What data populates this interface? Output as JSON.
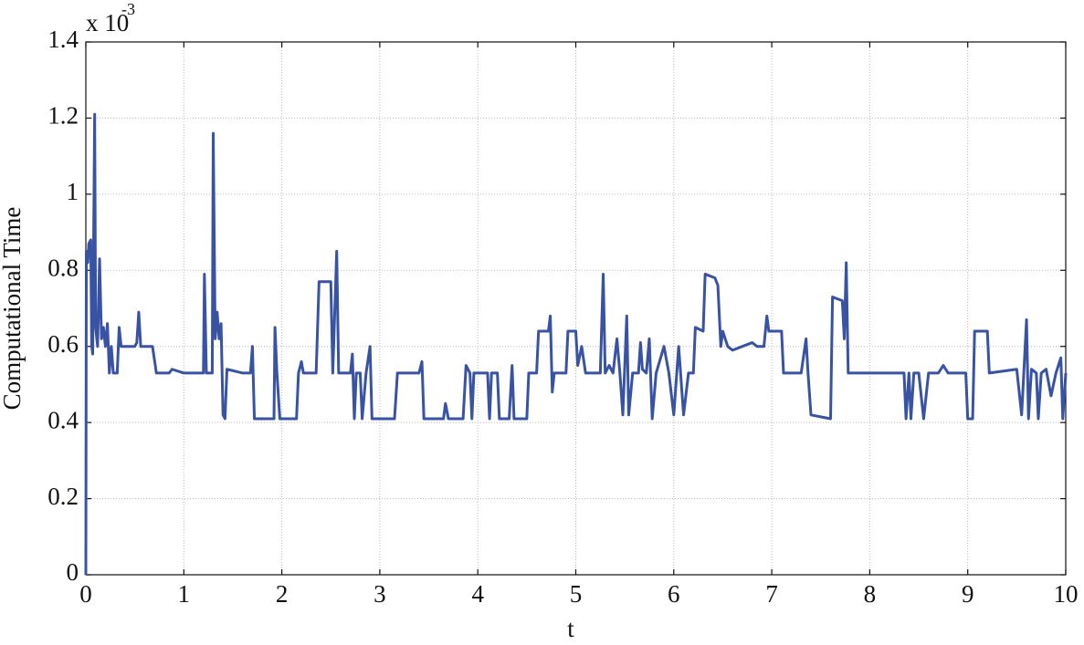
{
  "chart_data": {
    "type": "line",
    "xlabel": "t",
    "ylabel": "Computational Time",
    "y_multiplier": {
      "base": "x 10",
      "exponent": "-3"
    },
    "color": "#3853a4",
    "grid": true,
    "xlim": [
      0,
      10
    ],
    "xticks": [
      0,
      1,
      2,
      3,
      4,
      5,
      6,
      7,
      8,
      9,
      10
    ],
    "ylim": [
      0,
      1.4
    ],
    "yticks": [
      0,
      0.2,
      0.4,
      0.6,
      0.8,
      1,
      1.2,
      1.4
    ],
    "x": [
      0,
      0.005,
      0.02,
      0.03,
      0.05,
      0.06,
      0.07,
      0.09,
      0.1,
      0.12,
      0.14,
      0.16,
      0.18,
      0.2,
      0.22,
      0.24,
      0.26,
      0.28,
      0.32,
      0.34,
      0.36,
      0.5,
      0.52,
      0.54,
      0.56,
      0.68,
      0.72,
      0.85,
      0.88,
      1.0,
      1.2,
      1.21,
      1.23,
      1.29,
      1.3,
      1.32,
      1.34,
      1.36,
      1.38,
      1.4,
      1.42,
      1.44,
      1.6,
      1.68,
      1.7,
      1.72,
      1.92,
      1.93,
      1.95,
      1.98,
      2.15,
      2.17,
      2.2,
      2.22,
      2.35,
      2.38,
      2.5,
      2.52,
      2.56,
      2.58,
      2.7,
      2.72,
      2.74,
      2.76,
      2.8,
      2.82,
      2.86,
      2.9,
      2.92,
      3.15,
      3.18,
      3.4,
      3.43,
      3.45,
      3.65,
      3.67,
      3.7,
      3.85,
      3.88,
      3.92,
      3.94,
      3.96,
      4.1,
      4.12,
      4.14,
      4.2,
      4.22,
      4.32,
      4.35,
      4.37,
      4.5,
      4.52,
      4.6,
      4.62,
      4.72,
      4.74,
      4.76,
      4.78,
      4.9,
      4.92,
      5.0,
      5.02,
      5.06,
      5.1,
      5.2,
      5.25,
      5.28,
      5.3,
      5.34,
      5.38,
      5.42,
      5.45,
      5.48,
      5.5,
      5.52,
      5.54,
      5.58,
      5.64,
      5.66,
      5.68,
      5.72,
      5.75,
      5.78,
      5.82,
      5.9,
      5.95,
      6.0,
      6.05,
      6.1,
      6.15,
      6.2,
      6.22,
      6.3,
      6.32,
      6.42,
      6.45,
      6.48,
      6.5,
      6.55,
      6.6,
      6.7,
      6.8,
      6.85,
      6.92,
      6.95,
      6.97,
      7.1,
      7.12,
      7.3,
      7.35,
      7.37,
      7.4,
      7.6,
      7.62,
      7.72,
      7.74,
      7.76,
      7.78,
      8.0,
      8.35,
      8.37,
      8.4,
      8.42,
      8.45,
      8.5,
      8.55,
      8.6,
      8.7,
      8.75,
      8.8,
      8.98,
      9.0,
      9.05,
      9.07,
      9.2,
      9.22,
      9.5,
      9.55,
      9.58,
      9.6,
      9.62,
      9.65,
      9.7,
      9.72,
      9.75,
      9.8,
      9.85,
      9.9,
      9.95,
      9.97,
      10
    ],
    "values": [
      0,
      0.85,
      0.82,
      0.87,
      0.88,
      0.6,
      0.58,
      1.21,
      0.65,
      0.6,
      0.83,
      0.62,
      0.65,
      0.6,
      0.66,
      0.53,
      0.6,
      0.53,
      0.53,
      0.65,
      0.6,
      0.6,
      0.61,
      0.69,
      0.6,
      0.6,
      0.53,
      0.53,
      0.54,
      0.53,
      0.53,
      0.79,
      0.53,
      0.53,
      1.16,
      0.62,
      0.69,
      0.62,
      0.66,
      0.42,
      0.41,
      0.54,
      0.53,
      0.53,
      0.6,
      0.41,
      0.41,
      0.65,
      0.53,
      0.41,
      0.41,
      0.53,
      0.56,
      0.53,
      0.53,
      0.77,
      0.77,
      0.53,
      0.85,
      0.53,
      0.53,
      0.58,
      0.41,
      0.53,
      0.53,
      0.41,
      0.53,
      0.6,
      0.41,
      0.41,
      0.53,
      0.53,
      0.56,
      0.41,
      0.41,
      0.45,
      0.41,
      0.41,
      0.55,
      0.53,
      0.41,
      0.53,
      0.53,
      0.41,
      0.53,
      0.53,
      0.41,
      0.41,
      0.55,
      0.41,
      0.41,
      0.53,
      0.53,
      0.64,
      0.64,
      0.68,
      0.48,
      0.53,
      0.53,
      0.64,
      0.64,
      0.55,
      0.6,
      0.53,
      0.53,
      0.53,
      0.79,
      0.53,
      0.55,
      0.53,
      0.62,
      0.53,
      0.42,
      0.55,
      0.68,
      0.42,
      0.53,
      0.53,
      0.61,
      0.54,
      0.53,
      0.62,
      0.41,
      0.53,
      0.6,
      0.53,
      0.42,
      0.6,
      0.42,
      0.53,
      0.53,
      0.65,
      0.64,
      0.79,
      0.78,
      0.76,
      0.6,
      0.64,
      0.6,
      0.59,
      0.6,
      0.61,
      0.6,
      0.6,
      0.68,
      0.64,
      0.64,
      0.53,
      0.53,
      0.62,
      0.53,
      0.42,
      0.41,
      0.73,
      0.72,
      0.62,
      0.82,
      0.53,
      0.53,
      0.53,
      0.41,
      0.53,
      0.41,
      0.53,
      0.53,
      0.41,
      0.53,
      0.53,
      0.55,
      0.53,
      0.53,
      0.41,
      0.41,
      0.64,
      0.64,
      0.53,
      0.54,
      0.42,
      0.57,
      0.67,
      0.41,
      0.54,
      0.53,
      0.41,
      0.53,
      0.54,
      0.47,
      0.53,
      0.57,
      0.41,
      0.53
    ]
  }
}
